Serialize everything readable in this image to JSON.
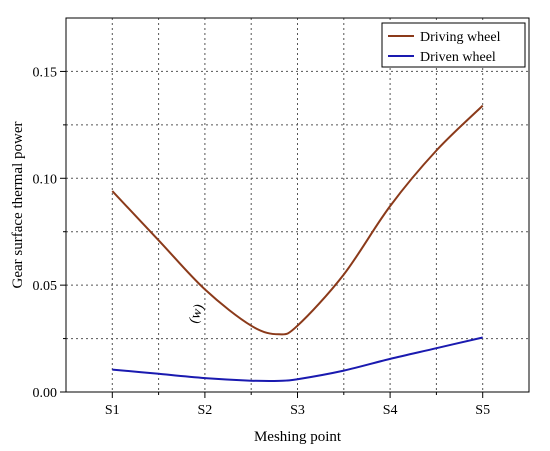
{
  "chart_data": {
    "type": "line",
    "xlabel": "Meshing point",
    "ylabel": "Gear surface thermal power",
    "categories": [
      "S1",
      "S2",
      "S3",
      "S4",
      "S5"
    ],
    "xlim": [
      0.5,
      5.5
    ],
    "ylim": [
      0.0,
      0.175
    ],
    "yticks": [
      0.0,
      0.05,
      0.1,
      0.15
    ],
    "ytick_labels": [
      "0.00",
      "0.05",
      "0.10",
      "0.15"
    ],
    "grid": true,
    "legend_position": "top-right",
    "annotation": {
      "text": "(w)",
      "x": 1.95,
      "y": 0.036
    },
    "series": [
      {
        "name": "Driving wheel",
        "color": "#8B3A1A",
        "x": [
          1.0,
          1.5,
          2.0,
          2.5,
          2.8,
          3.0,
          3.5,
          4.0,
          4.5,
          5.0
        ],
        "values": [
          0.094,
          0.071,
          0.048,
          0.031,
          0.027,
          0.031,
          0.055,
          0.087,
          0.113,
          0.134
        ]
      },
      {
        "name": "Driven wheel",
        "color": "#1A1AB0",
        "x": [
          1.0,
          1.5,
          2.0,
          2.5,
          2.8,
          3.0,
          3.5,
          4.0,
          4.5,
          5.0
        ],
        "values": [
          0.0105,
          0.0085,
          0.0065,
          0.0053,
          0.0052,
          0.006,
          0.01,
          0.0155,
          0.0205,
          0.0255
        ]
      }
    ]
  }
}
